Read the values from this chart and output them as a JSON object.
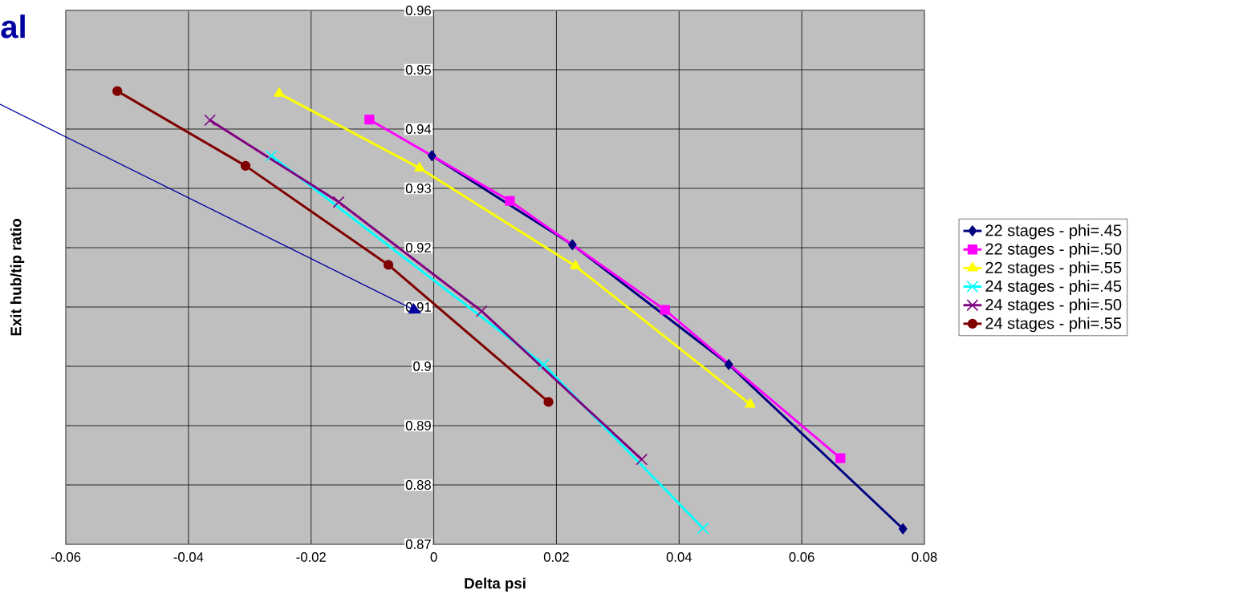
{
  "chart_data": {
    "type": "line",
    "xlabel": "Delta psi",
    "ylabel": "Exit hub/tip ratio",
    "xlim": [
      -0.06,
      0.08
    ],
    "xticks": [
      -0.06,
      -0.04,
      -0.02,
      0,
      0.02,
      0.04,
      0.06,
      0.08
    ],
    "ylim": [
      0.87,
      0.96
    ],
    "yticks": [
      0.87,
      0.88,
      0.89,
      0.9,
      0.91,
      0.92,
      0.93,
      0.94,
      0.95,
      0.96
    ],
    "grid": true,
    "legend": "right",
    "annotations": [
      "al"
    ],
    "series": [
      {
        "name": "22 stages - phi=.45",
        "color": "#000080",
        "marker": "diamond",
        "x": [
          -0.0003,
          0.0226,
          0.0481,
          0.0765
        ],
        "values": [
          0.9355,
          0.9205,
          0.9003,
          0.8726
        ]
      },
      {
        "name": "22 stages - phi=.50",
        "color": "#ff00ff",
        "marker": "square",
        "x": [
          -0.0105,
          0.0124,
          0.0377,
          0.0663
        ],
        "values": [
          0.9416,
          0.9279,
          0.9095,
          0.8845
        ]
      },
      {
        "name": "22 stages - phi=.55",
        "color": "#ffff00",
        "marker": "triangle",
        "x": [
          -0.0252,
          -0.0023,
          0.0231,
          0.0516
        ],
        "values": [
          0.946,
          0.9334,
          0.9169,
          0.8936
        ]
      },
      {
        "name": "24 stages - phi=.45",
        "color": "#00ffff",
        "marker": "cross",
        "x": [
          -0.0265,
          0.0179,
          0.0439
        ],
        "values": [
          0.9355,
          0.9003,
          0.8727
        ]
      },
      {
        "name": "24 stages - phi=.50",
        "color": "#800080",
        "marker": "cross",
        "x": [
          -0.0365,
          -0.0155,
          0.0078,
          0.0339
        ],
        "values": [
          0.9415,
          0.9277,
          0.9093,
          0.8843
        ]
      },
      {
        "name": "24 stages - phi=.55",
        "color": "#800000",
        "marker": "circle",
        "x": [
          -0.0516,
          -0.0307,
          -0.0074,
          0.0187
        ],
        "values": [
          0.9464,
          0.9338,
          0.9171,
          0.894
        ]
      }
    ]
  }
}
